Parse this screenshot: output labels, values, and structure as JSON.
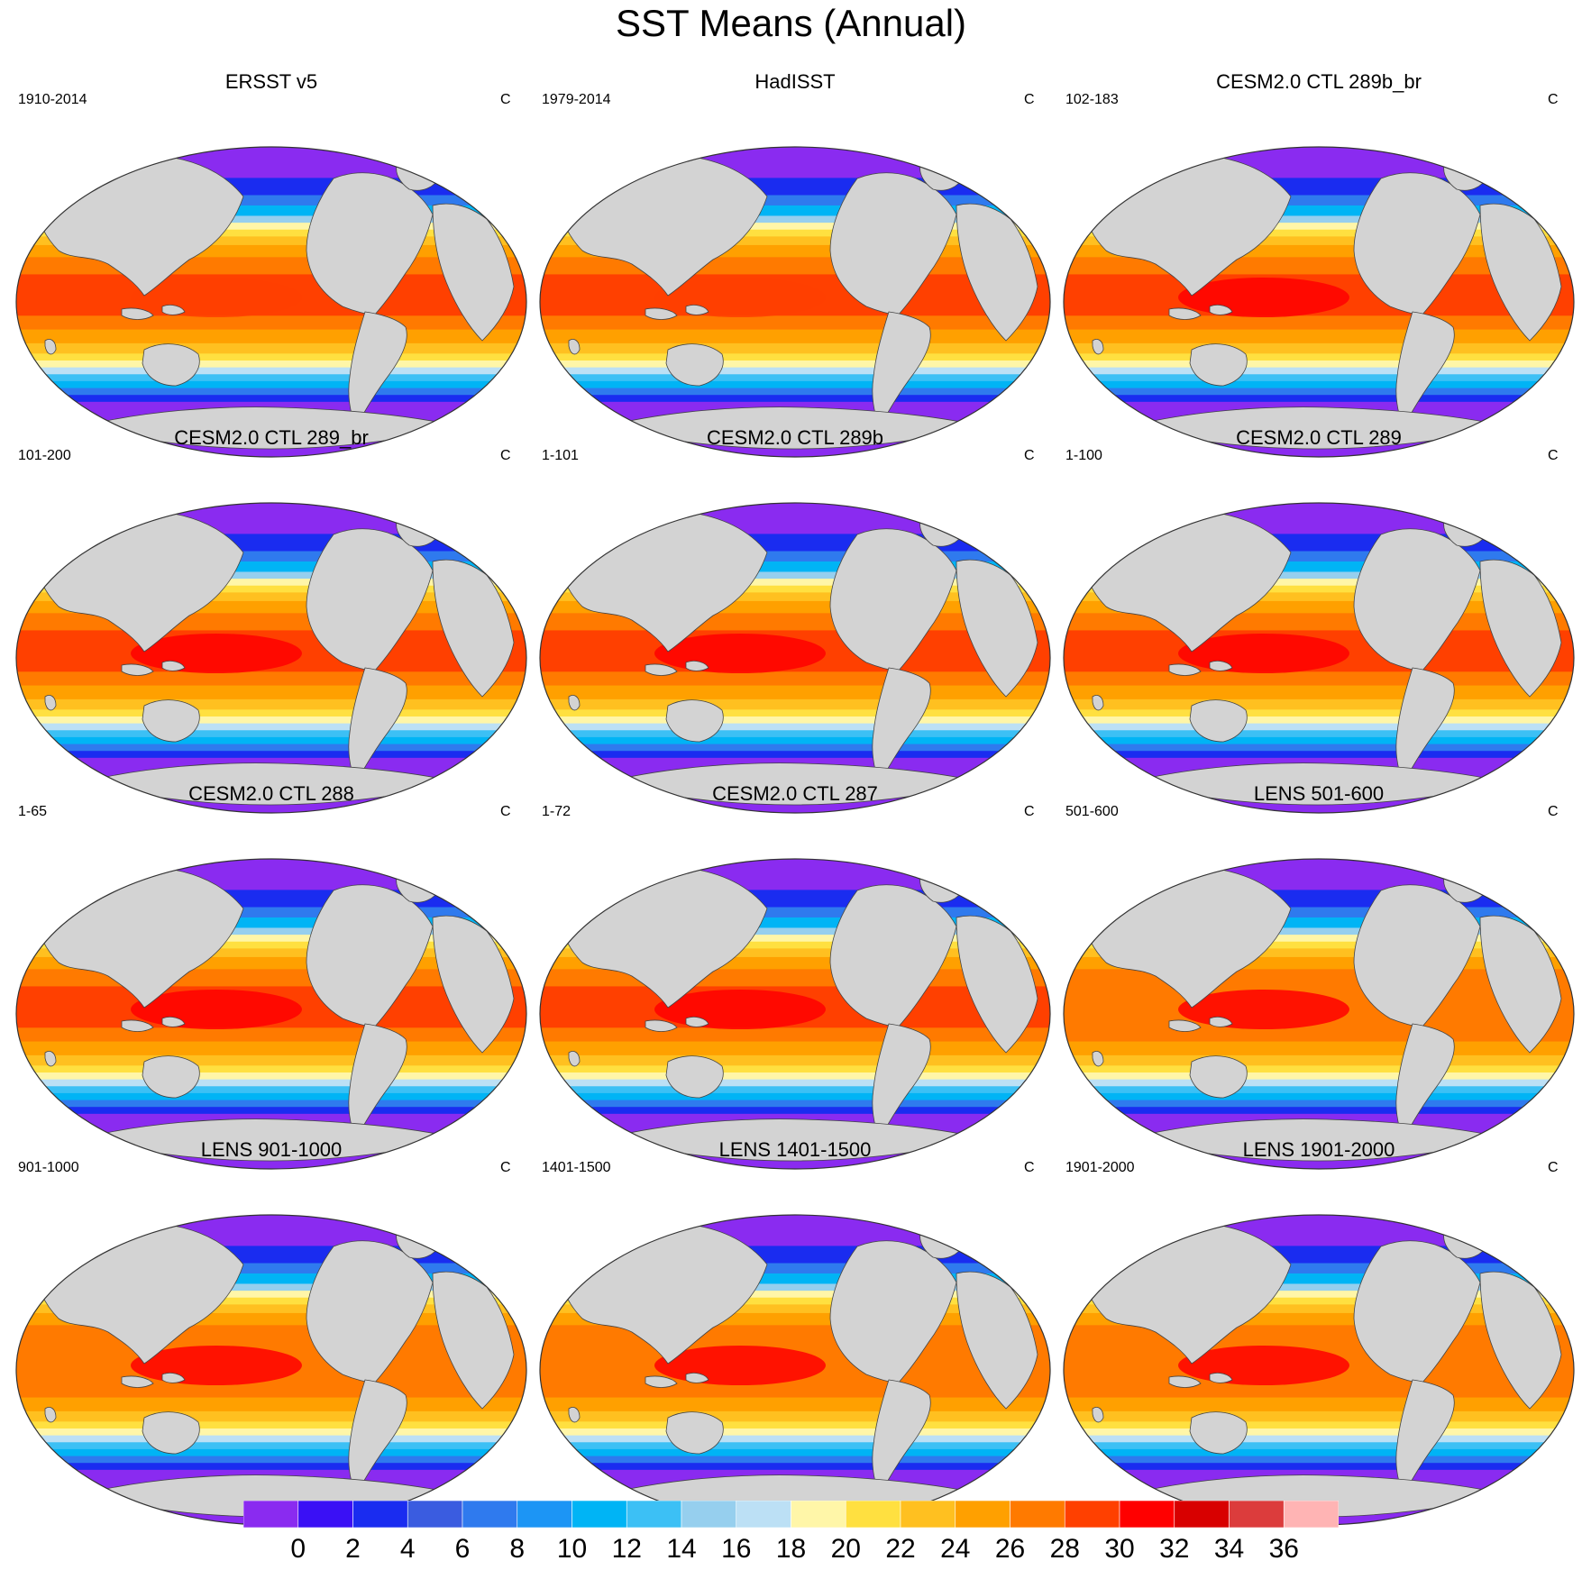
{
  "title": "SST Means (Annual)",
  "units": "C",
  "panels": [
    {
      "name": "ERSST v5",
      "period": "1910-2014",
      "style": "obs"
    },
    {
      "name": "HadISST",
      "period": "1979-2014",
      "style": "obs"
    },
    {
      "name": "CESM2.0 CTL 289b_br",
      "period": "102-183",
      "style": "warm"
    },
    {
      "name": "CESM2.0 CTL 289_br",
      "period": "101-200",
      "style": "warm"
    },
    {
      "name": "CESM2.0 CTL 289b",
      "period": "1-101",
      "style": "warm"
    },
    {
      "name": "CESM2.0 CTL 289",
      "period": "1-100",
      "style": "warm"
    },
    {
      "name": "CESM2.0 CTL 288",
      "period": "1-65",
      "style": "warm"
    },
    {
      "name": "CESM2.0 CTL 287",
      "period": "1-72",
      "style": "warm"
    },
    {
      "name": "LENS 501-600",
      "period": "501-600",
      "style": "lens"
    },
    {
      "name": "LENS 901-1000",
      "period": "901-1000",
      "style": "lens"
    },
    {
      "name": "LENS 1401-1500",
      "period": "1401-1500",
      "style": "lens"
    },
    {
      "name": "LENS 1901-2000",
      "period": "1901-2000",
      "style": "lens"
    }
  ],
  "colorbar": {
    "labels": [
      "0",
      "2",
      "4",
      "6",
      "8",
      "10",
      "12",
      "14",
      "16",
      "18",
      "20",
      "22",
      "24",
      "26",
      "28",
      "30",
      "32",
      "34",
      "36"
    ],
    "colors": [
      "#8A2BF0",
      "#3A10F5",
      "#1A2CF0",
      "#3A5CE0",
      "#2F7AEE",
      "#1C95F5",
      "#00B4F5",
      "#3CC0F5",
      "#96CFEE",
      "#BCE0F5",
      "#FFF6A8",
      "#FFE040",
      "#FFC020",
      "#FFA000",
      "#FF7A00",
      "#FF4000",
      "#FF0000",
      "#D80000",
      "#DC3C3C",
      "#FFB4B4"
    ]
  },
  "map_colors": {
    "land": "#D3D3D3",
    "outline": "#444444"
  }
}
